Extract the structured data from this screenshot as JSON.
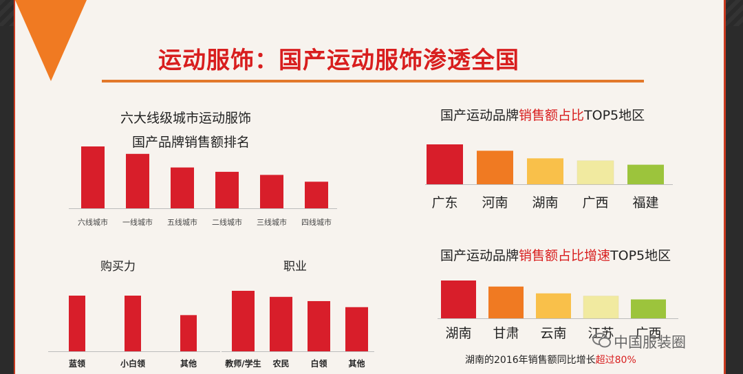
{
  "title": "运动服饰：国产运动服饰渗透全国",
  "watermark": "中国服装圈",
  "footnote": {
    "prefix": "湖南的2016年销售额同比增长",
    "highlight": "超过80%"
  },
  "colors": {
    "red": "#d81e2a",
    "accent": "#f07a22"
  },
  "chart_data": [
    {
      "id": "city",
      "type": "bar",
      "title_line1": "六大线级城市运动服饰",
      "title_line2": "国产品牌销售额排名",
      "categories": [
        "六线城市",
        "一线城市",
        "五线城市",
        "二线城市",
        "三线城市",
        "四线城市"
      ],
      "values": [
        100,
        88,
        66,
        59,
        54,
        43
      ],
      "ylim": [
        0,
        100
      ]
    },
    {
      "id": "power",
      "type": "bar",
      "title": "购买力",
      "categories": [
        "蓝领",
        "小白领",
        "其他"
      ],
      "values": [
        100,
        100,
        65
      ],
      "ylim": [
        0,
        100
      ]
    },
    {
      "id": "job",
      "type": "bar",
      "title": "职业",
      "categories": [
        "教师/学生",
        "农民",
        "白领",
        "其他"
      ],
      "values": [
        100,
        90,
        83,
        73
      ],
      "ylim": [
        0,
        100
      ]
    },
    {
      "id": "top5",
      "type": "bar",
      "title_a": "国产运动品牌",
      "title_b": "销售额占比",
      "title_c": "TOP5地区",
      "categories": [
        "广东",
        "河南",
        "湖南",
        "广西",
        "福建"
      ],
      "values": [
        100,
        84,
        65,
        59,
        49
      ],
      "colors": [
        "#d81e2a",
        "#f07a22",
        "#f9c04a",
        "#f1eaa0",
        "#9cc43c"
      ],
      "ylim": [
        0,
        100
      ]
    },
    {
      "id": "growth",
      "type": "bar",
      "title_a": "国产运动品牌",
      "title_b": "销售额占比增速",
      "title_c": "TOP5地区",
      "categories": [
        "湖南",
        "甘肃",
        "云南",
        "江苏",
        "广西"
      ],
      "values": [
        100,
        84,
        66,
        59,
        50
      ],
      "colors": [
        "#d81e2a",
        "#f07a22",
        "#f9c04a",
        "#f1eaa0",
        "#9cc43c"
      ],
      "ylim": [
        0,
        100
      ]
    }
  ]
}
